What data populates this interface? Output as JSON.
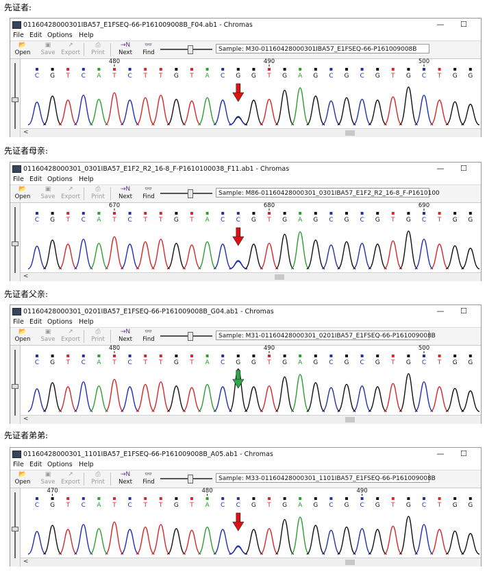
{
  "app": {
    "menu": [
      "File",
      "Edit",
      "Options",
      "Help"
    ],
    "toolbar": [
      "Open",
      "Save",
      "Export",
      "Print",
      "Next",
      "Find"
    ],
    "win_min": "—",
    "win_max": "☐",
    "scroll_left": "<"
  },
  "colors": {
    "A": "#2ca02c",
    "C": "#1f2fb4",
    "G": "#111111",
    "T": "#d62728",
    "arrow_red": "#dd1111",
    "arrow_green": "#2aa84a"
  },
  "panels": [
    {
      "caption": "先证者:",
      "title": "01160428000301IBA57_E1FSEQ-66-P161009008B_F04.ab1 - Chromas",
      "sample": "Sample: M30-01160428000301IBA57_E1FSEQ-66-P161009008B",
      "bases": "CGTCATCTTGTACGGTGAGCGCGTGCTGG",
      "ticks": [
        {
          "label": "480",
          "index": 5
        },
        {
          "label": "490",
          "index": 15
        },
        {
          "label": "500",
          "index": 25
        }
      ],
      "arrow_index": 13,
      "arrow_color": "red",
      "scroll_pos": 0.74
    },
    {
      "caption": "先证者母亲:",
      "title": "01160428000301_0301IBA57_E1F2_R2_16-8_F-P1610100038_F11.ab1 - Chromas",
      "sample": "Sample: M86-01160428000301_0301IBA57_E1F2_R2_16-8_F-P1610100",
      "bases": "CGTCATCTTGTACCGTGAGCGCGTGCTGG",
      "ticks": [
        {
          "label": "670",
          "index": 5
        },
        {
          "label": "680",
          "index": 15
        },
        {
          "label": "690",
          "index": 25
        }
      ],
      "arrow_index": 13,
      "arrow_color": "red",
      "scroll_pos": 0.58
    },
    {
      "caption": "先证者父亲:",
      "title": "01160428000301_0201IBA57_E1FSEQ-66-P161009008B_G04.ab1 - Chromas",
      "sample": "Sample: M31-01160428000301_0201IBA57_E1FSEQ-66-P161009008B",
      "bases": "CGTCATCTTGTACGGTGAGCGCGTGCTGG",
      "ticks": [
        {
          "label": "480",
          "index": 5
        },
        {
          "label": "490",
          "index": 15
        },
        {
          "label": "500",
          "index": 25
        }
      ],
      "arrow_index": 13,
      "arrow_color": "green",
      "scroll_pos": 0.74
    },
    {
      "caption": "先证者弟弟:",
      "title": "01160428000301_1101IBA57_E1FSEQ-66-P161009008B_A05.ab1 - Chromas",
      "sample": "Sample: M33-01160428000301_1101IBA57_E1FSEQ-66-P161009008B",
      "bases": "CGTCATCTTGTACCGTGAGCGCGTGCTGG",
      "ticks": [
        {
          "label": "470",
          "index": 1
        },
        {
          "label": "480",
          "index": 11
        },
        {
          "label": "490",
          "index": 21
        }
      ],
      "arrow_index": 13,
      "arrow_color": "red",
      "scroll_pos": 0.74
    }
  ]
}
